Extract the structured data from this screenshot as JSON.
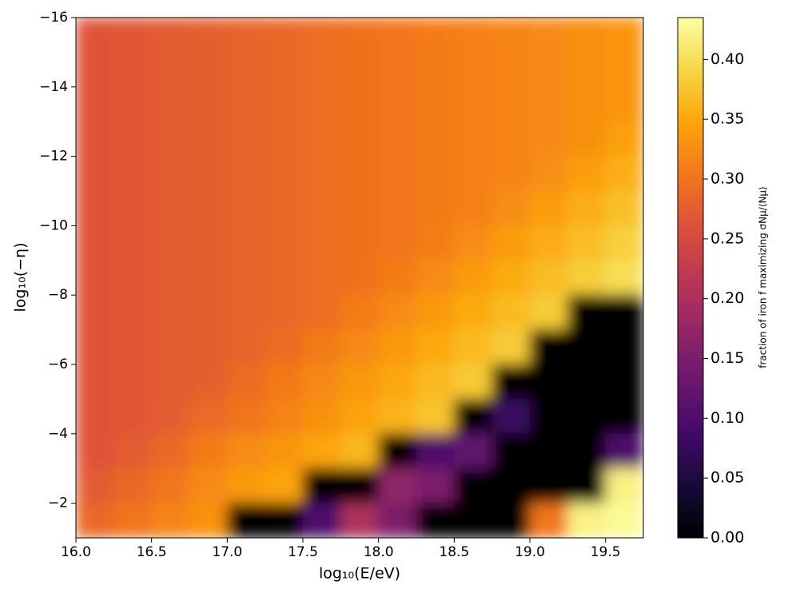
{
  "chart_data": {
    "type": "heatmap",
    "xlabel": "log₁₀(E/eV)",
    "ylabel": "log₁₀(−η)",
    "colorbar_label": "fraction of iron f maximizing σNμ/⟨Nμ⟩",
    "colormap": "inferno",
    "x": [
      16.125,
      16.375,
      16.625,
      16.875,
      17.125,
      17.375,
      17.625,
      17.875,
      18.125,
      18.375,
      18.625,
      18.875,
      19.125,
      19.375,
      19.625
    ],
    "y": [
      -15.5,
      -14.5,
      -13.5,
      -12.5,
      -11.5,
      -10.5,
      -9.5,
      -8.5,
      -7.5,
      -6.5,
      -5.5,
      -4.5,
      -3.5,
      -2.5,
      -1.5
    ],
    "z": [
      [
        0.262,
        0.267,
        0.272,
        0.277,
        0.282,
        0.287,
        0.292,
        0.297,
        0.302,
        0.307,
        0.312,
        0.317,
        0.322,
        0.327,
        0.332
      ],
      [
        0.262,
        0.267,
        0.272,
        0.277,
        0.282,
        0.287,
        0.292,
        0.297,
        0.302,
        0.307,
        0.312,
        0.317,
        0.322,
        0.327,
        0.332
      ],
      [
        0.262,
        0.267,
        0.272,
        0.277,
        0.282,
        0.287,
        0.292,
        0.297,
        0.302,
        0.307,
        0.312,
        0.317,
        0.322,
        0.327,
        0.332
      ],
      [
        0.262,
        0.267,
        0.272,
        0.277,
        0.282,
        0.287,
        0.292,
        0.297,
        0.302,
        0.307,
        0.312,
        0.317,
        0.322,
        0.327,
        0.343
      ],
      [
        0.262,
        0.267,
        0.272,
        0.277,
        0.282,
        0.287,
        0.292,
        0.297,
        0.302,
        0.307,
        0.312,
        0.317,
        0.326,
        0.341,
        0.357
      ],
      [
        0.262,
        0.267,
        0.272,
        0.277,
        0.282,
        0.287,
        0.292,
        0.297,
        0.302,
        0.307,
        0.312,
        0.325,
        0.34,
        0.355,
        0.371
      ],
      [
        0.262,
        0.267,
        0.272,
        0.277,
        0.282,
        0.287,
        0.292,
        0.297,
        0.302,
        0.309,
        0.324,
        0.339,
        0.354,
        0.369,
        0.385
      ],
      [
        0.262,
        0.267,
        0.272,
        0.277,
        0.282,
        0.287,
        0.292,
        0.297,
        0.308,
        0.323,
        0.338,
        0.353,
        0.368,
        0.383,
        0.399
      ],
      [
        0.262,
        0.267,
        0.272,
        0.277,
        0.282,
        0.287,
        0.292,
        0.307,
        0.322,
        0.337,
        0.352,
        0.367,
        0.382,
        0,
        0
      ],
      [
        0.262,
        0.267,
        0.272,
        0.277,
        0.282,
        0.291,
        0.306,
        0.321,
        0.336,
        0.351,
        0.366,
        0.381,
        0,
        0,
        0
      ],
      [
        0.262,
        0.267,
        0.272,
        0.277,
        0.29,
        0.305,
        0.32,
        0.335,
        0.35,
        0.365,
        0.38,
        0,
        0,
        0,
        0
      ],
      [
        0.262,
        0.267,
        0.274,
        0.289,
        0.3,
        0.315,
        0.33,
        0.345,
        0.36,
        0.375,
        0,
        0.08,
        0,
        0,
        0
      ],
      [
        0.262,
        0.273,
        0.288,
        0.308,
        0.323,
        0.333,
        0.348,
        0.363,
        0,
        0.1,
        0.12,
        0,
        0,
        0,
        0.1
      ],
      [
        0.272,
        0.287,
        0.302,
        0.322,
        0.337,
        0.347,
        0,
        0,
        0.17,
        0.15,
        0,
        0,
        0,
        0,
        0.42
      ],
      [
        0.286,
        0.301,
        0.316,
        0.331,
        0,
        0,
        0.1,
        0.2,
        0.15,
        0,
        0,
        0,
        0.3,
        0.42,
        0.43
      ]
    ],
    "xlim": [
      16,
      19.75
    ],
    "ylim": [
      -1,
      -16
    ],
    "clim": [
      0,
      0.435
    ],
    "xticks": [
      {
        "value": 16,
        "label": "16.0"
      },
      16.5,
      {
        "value": 17,
        "label": "17.0"
      },
      17.5,
      {
        "value": 18,
        "label": "18.0"
      },
      18.5,
      {
        "value": 19,
        "label": "19.0"
      },
      19.5
    ],
    "yticks": [
      {
        "value": -16,
        "label": "−16"
      },
      {
        "value": -14,
        "label": "−14"
      },
      {
        "value": -12,
        "label": "−12"
      },
      {
        "value": -10,
        "label": "−10"
      },
      {
        "value": -8,
        "label": "−8"
      },
      {
        "value": -6,
        "label": "−6"
      },
      {
        "value": -4,
        "label": "−4"
      },
      {
        "value": -2,
        "label": "−2"
      }
    ],
    "cticks": [
      {
        "value": 0,
        "label": "0.00"
      },
      0.05,
      {
        "value": 0.1,
        "label": "0.10"
      },
      0.15,
      {
        "value": 0.2,
        "label": "0.20"
      },
      0.25,
      {
        "value": 0.3,
        "label": "0.30"
      },
      0.35,
      {
        "value": 0.4,
        "label": "0.40"
      }
    ]
  }
}
